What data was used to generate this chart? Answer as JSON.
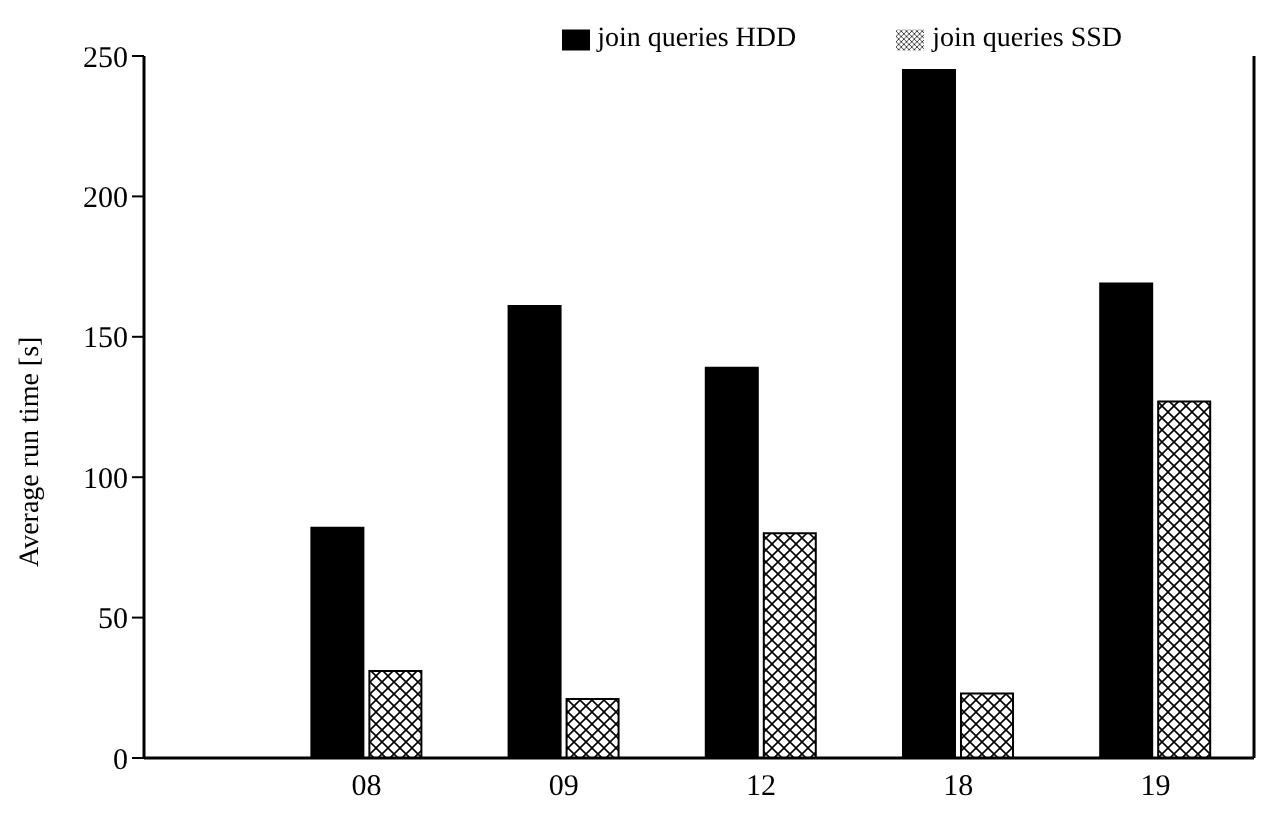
{
  "chart_data": {
    "type": "bar",
    "ylabel": "Average run time [s]",
    "categories": [
      "08",
      "09",
      "12",
      "18",
      "19"
    ],
    "series": [
      {
        "name": "join queries HDD",
        "color": "#000000",
        "values": [
          82,
          161,
          139,
          245,
          169
        ]
      },
      {
        "name": "join queries SSD",
        "color": "#000000",
        "values": [
          31,
          21,
          80,
          23,
          127
        ]
      }
    ],
    "ylim": [
      0,
      250
    ],
    "yticks": [
      0,
      50,
      100,
      150,
      200,
      250
    ],
    "grid": false,
    "legend": "top right"
  }
}
